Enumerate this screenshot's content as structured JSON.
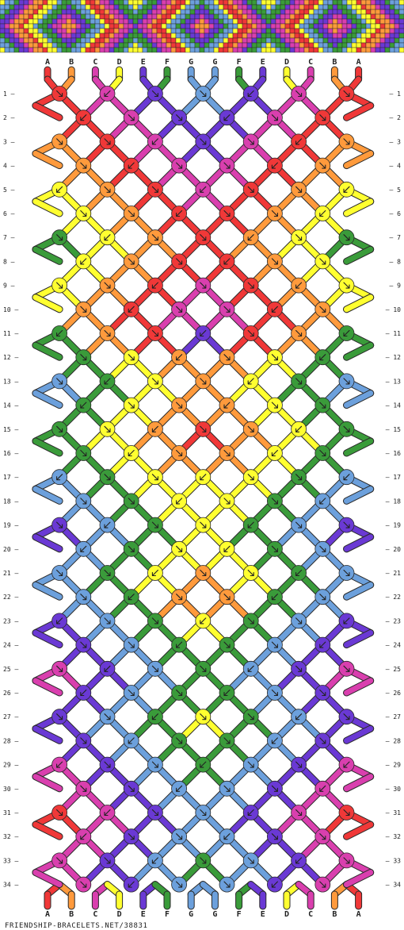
{
  "colors": {
    "red": "#f03838",
    "orange": "#ff9a3c",
    "pink": "#d93fae",
    "yellow": "#ffff30",
    "purple": "#6a39d4",
    "green": "#3a9b3a",
    "blue": "#6ca0dc"
  },
  "header_pattern": [
    "orange",
    "pink",
    "purple",
    "green",
    "blue",
    "yellow",
    "red"
  ],
  "strands_top": [
    {
      "label": "A",
      "color": "red"
    },
    {
      "label": "B",
      "color": "orange"
    },
    {
      "label": "C",
      "color": "pink"
    },
    {
      "label": "D",
      "color": "yellow"
    },
    {
      "label": "E",
      "color": "purple"
    },
    {
      "label": "F",
      "color": "green"
    },
    {
      "label": "G",
      "color": "blue"
    },
    {
      "label": "G",
      "color": "blue"
    },
    {
      "label": "F",
      "color": "green"
    },
    {
      "label": "E",
      "color": "purple"
    },
    {
      "label": "D",
      "color": "yellow"
    },
    {
      "label": "C",
      "color": "pink"
    },
    {
      "label": "B",
      "color": "orange"
    },
    {
      "label": "A",
      "color": "red"
    }
  ],
  "strands_bottom": [
    {
      "label": "A",
      "color": "red"
    },
    {
      "label": "B",
      "color": "orange"
    },
    {
      "label": "C",
      "color": "pink"
    },
    {
      "label": "D",
      "color": "yellow"
    },
    {
      "label": "E",
      "color": "purple"
    },
    {
      "label": "F",
      "color": "green"
    },
    {
      "label": "G",
      "color": "blue"
    },
    {
      "label": "G",
      "color": "blue"
    },
    {
      "label": "F",
      "color": "green"
    },
    {
      "label": "E",
      "color": "purple"
    },
    {
      "label": "D",
      "color": "yellow"
    },
    {
      "label": "C",
      "color": "pink"
    },
    {
      "label": "B",
      "color": "orange"
    },
    {
      "label": "A",
      "color": "red"
    }
  ],
  "rows": [
    "1",
    "2",
    "3",
    "4",
    "5",
    "6",
    "7",
    "8",
    "9",
    "10",
    "11",
    "12",
    "13",
    "14",
    "15",
    "16",
    "17",
    "18",
    "19",
    "20",
    "21",
    "22",
    "23",
    "24",
    "25",
    "26",
    "27",
    "28",
    "29",
    "30",
    "31",
    "32",
    "33",
    "34"
  ],
  "knot_rows": [
    [
      "red",
      "pink",
      "purple",
      "blue",
      "purple",
      "pink",
      "red"
    ],
    [
      "red",
      "pink",
      "purple",
      "purple",
      "pink",
      "red"
    ],
    [
      "orange",
      "red",
      "pink",
      "purple",
      "pink",
      "red",
      "orange"
    ],
    [
      "orange",
      "red",
      "pink",
      "pink",
      "red",
      "orange"
    ],
    [
      "yellow",
      "orange",
      "red",
      "pink",
      "red",
      "orange",
      "yellow"
    ],
    [
      "yellow",
      "orange",
      "red",
      "red",
      "orange",
      "yellow"
    ],
    [
      "green",
      "yellow",
      "orange",
      "red",
      "orange",
      "yellow",
      "green"
    ],
    [
      "yellow",
      "orange",
      "red",
      "red",
      "orange",
      "yellow"
    ],
    [
      "yellow",
      "orange",
      "red",
      "pink",
      "red",
      "orange",
      "yellow"
    ],
    [
      "orange",
      "red",
      "pink",
      "pink",
      "red",
      "orange"
    ],
    [
      "green",
      "orange",
      "red",
      "purple",
      "red",
      "orange",
      "green"
    ],
    [
      "green",
      "yellow",
      "orange",
      "orange",
      "yellow",
      "green"
    ],
    [
      "blue",
      "green",
      "yellow",
      "orange",
      "yellow",
      "green",
      "blue"
    ],
    [
      "green",
      "yellow",
      "orange",
      "orange",
      "yellow",
      "green"
    ],
    [
      "green",
      "yellow",
      "orange",
      "red",
      "orange",
      "yellow",
      "green"
    ],
    [
      "green",
      "yellow",
      "orange",
      "orange",
      "yellow",
      "green"
    ],
    [
      "blue",
      "green",
      "yellow",
      "yellow",
      "yellow",
      "green",
      "blue"
    ],
    [
      "blue",
      "green",
      "yellow",
      "yellow",
      "green",
      "blue"
    ],
    [
      "purple",
      "blue",
      "green",
      "yellow",
      "green",
      "blue",
      "purple"
    ],
    [
      "blue",
      "green",
      "yellow",
      "yellow",
      "green",
      "blue"
    ],
    [
      "blue",
      "green",
      "yellow",
      "orange",
      "yellow",
      "green",
      "blue"
    ],
    [
      "blue",
      "green",
      "orange",
      "orange",
      "green",
      "blue"
    ],
    [
      "purple",
      "blue",
      "green",
      "yellow",
      "green",
      "blue",
      "purple"
    ],
    [
      "purple",
      "blue",
      "green",
      "green",
      "blue",
      "purple"
    ],
    [
      "pink",
      "purple",
      "blue",
      "green",
      "blue",
      "purple",
      "pink"
    ],
    [
      "purple",
      "blue",
      "green",
      "green",
      "blue",
      "purple"
    ],
    [
      "purple",
      "blue",
      "green",
      "yellow",
      "green",
      "blue",
      "purple"
    ],
    [
      "purple",
      "blue",
      "green",
      "green",
      "blue",
      "purple"
    ],
    [
      "pink",
      "purple",
      "blue",
      "green",
      "blue",
      "purple",
      "pink"
    ],
    [
      "pink",
      "purple",
      "blue",
      "blue",
      "purple",
      "pink"
    ],
    [
      "red",
      "pink",
      "purple",
      "blue",
      "purple",
      "pink",
      "red"
    ],
    [
      "pink",
      "purple",
      "blue",
      "blue",
      "purple",
      "pink"
    ],
    [
      "pink",
      "purple",
      "blue",
      "green",
      "blue",
      "purple",
      "pink"
    ],
    [
      "pink",
      "purple",
      "blue",
      "blue",
      "purple",
      "pink"
    ]
  ],
  "footer": "FRIENDSHIP-BRACELETS.NET/38831"
}
